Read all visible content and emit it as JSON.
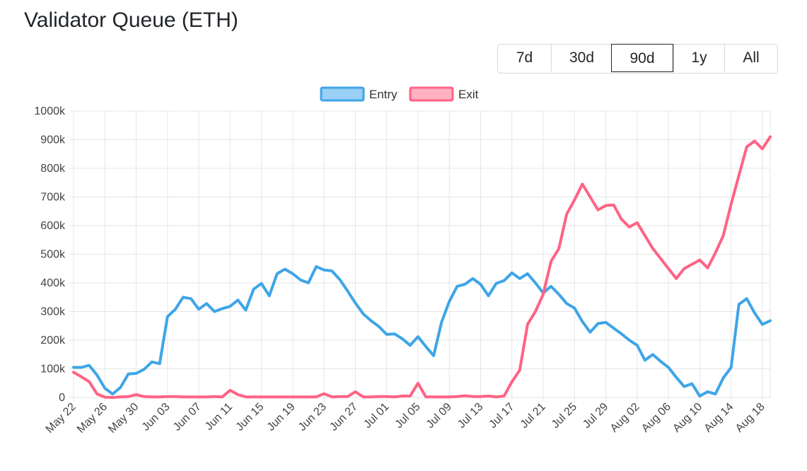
{
  "page": {
    "title": "Validator Queue (ETH)"
  },
  "range_selector": {
    "options": [
      "7d",
      "30d",
      "90d",
      "1y",
      "All"
    ],
    "selected": "90d"
  },
  "colors": {
    "entry": "#3ea5e8",
    "entry_fill": "#9ad0f5",
    "exit": "#ff6384",
    "exit_fill": "#ffb1c1",
    "grid": "#e6e6e6"
  },
  "chart_data": {
    "type": "line",
    "title": "",
    "xlabel": "",
    "ylabel": "",
    "ylim": [
      0,
      1000000
    ],
    "y_ticks": [
      0,
      100000,
      200000,
      300000,
      400000,
      500000,
      600000,
      700000,
      800000,
      900000,
      1000000
    ],
    "y_tick_labels": [
      "0",
      "100k",
      "200k",
      "300k",
      "400k",
      "500k",
      "600k",
      "700k",
      "800k",
      "900k",
      "1000k"
    ],
    "x_tick_labels": [
      "May 22",
      "May 26",
      "May 30",
      "Jun 03",
      "Jun 07",
      "Jun 11",
      "Jun 15",
      "Jun 19",
      "Jun 23",
      "Jun 27",
      "Jul 01",
      "Jul 05",
      "Jul 09",
      "Jul 13",
      "Jul 17",
      "Jul 21",
      "Jul 25",
      "Jul 29",
      "Aug 02",
      "Aug 06",
      "Aug 10",
      "Aug 14",
      "Aug 18"
    ],
    "x_start": "May 22",
    "x_end": "Aug 19",
    "grid": true,
    "legend_position": "top-center",
    "series": [
      {
        "name": "Entry",
        "values": [
          105000,
          105000,
          112000,
          78000,
          32000,
          12000,
          35000,
          82000,
          84000,
          98000,
          124000,
          118000,
          282000,
          308000,
          350000,
          345000,
          308000,
          328000,
          300000,
          310000,
          318000,
          340000,
          305000,
          378000,
          398000,
          355000,
          432000,
          448000,
          432000,
          410000,
          400000,
          457000,
          445000,
          442000,
          412000,
          372000,
          330000,
          292000,
          268000,
          248000,
          220000,
          222000,
          205000,
          182000,
          212000,
          178000,
          146000,
          262000,
          335000,
          388000,
          395000,
          415000,
          395000,
          355000,
          398000,
          408000,
          435000,
          415000,
          432000,
          400000,
          365000,
          388000,
          360000,
          328000,
          312000,
          265000,
          228000,
          258000,
          262000,
          242000,
          222000,
          200000,
          182000,
          130000,
          150000,
          126000,
          105000,
          70000,
          38000,
          48000,
          5000,
          20000,
          12000,
          68000,
          105000,
          325000,
          345000,
          295000,
          255000,
          268000
        ]
      },
      {
        "name": "Exit",
        "values": [
          88000,
          72000,
          55000,
          12000,
          1000,
          0,
          2000,
          3000,
          10000,
          3000,
          2000,
          2000,
          3000,
          3000,
          2000,
          2000,
          2000,
          2000,
          3000,
          2000,
          25000,
          10000,
          2000,
          2000,
          2000,
          2000,
          2000,
          2000,
          2000,
          2000,
          2000,
          2000,
          13000,
          2000,
          3000,
          3000,
          20000,
          2000,
          2000,
          3000,
          3000,
          2000,
          5000,
          5000,
          50000,
          2000,
          2000,
          2000,
          2000,
          3000,
          6000,
          3000,
          3000,
          5000,
          2000,
          5000,
          55000,
          95000,
          255000,
          300000,
          360000,
          475000,
          520000,
          640000,
          690000,
          745000,
          700000,
          655000,
          670000,
          672000,
          622000,
          595000,
          610000,
          565000,
          520000,
          485000,
          450000,
          415000,
          450000,
          465000,
          480000,
          452000,
          505000,
          565000,
          675000,
          775000,
          875000,
          895000,
          868000,
          910000
        ]
      }
    ]
  }
}
